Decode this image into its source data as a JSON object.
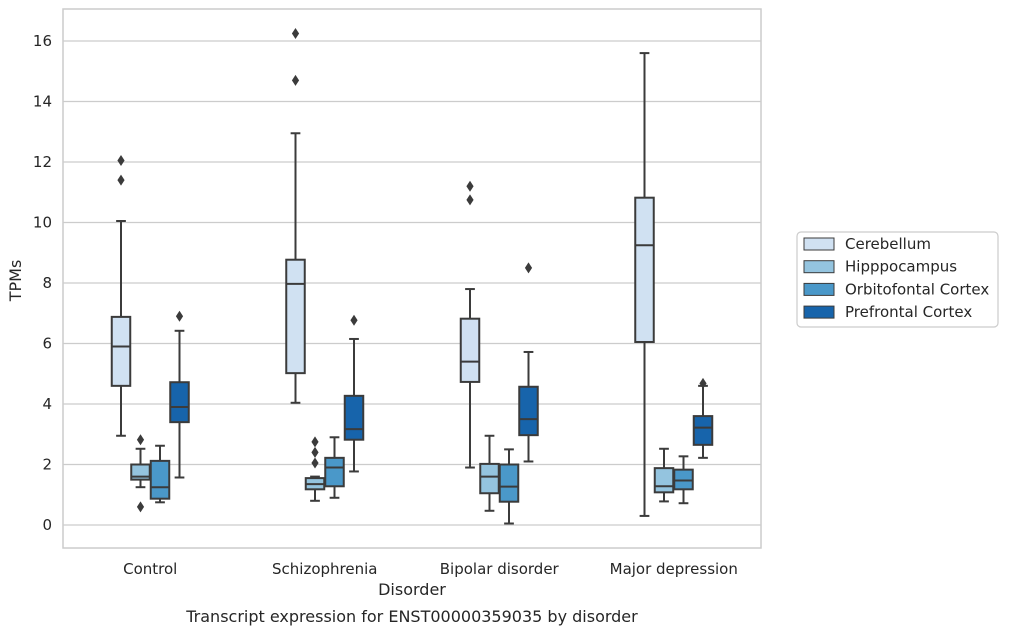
{
  "chart_data": {
    "type": "box",
    "xlabel": "Disorder",
    "ylabel": "TPMs",
    "caption": "Transcript expression for ENST00000359035 by disorder",
    "ylim": [
      -0.75,
      17
    ],
    "yticks": [
      0,
      2,
      4,
      6,
      8,
      10,
      12,
      14,
      16
    ],
    "grid": "horizontal",
    "legend_position": "right",
    "categories": [
      "Control",
      "Schizophrenia",
      "Bipolar disorder",
      "Major depression"
    ],
    "series": [
      {
        "name": "Cerebellum",
        "color": "#d0e1f2",
        "boxes": [
          {
            "q1": 4.6,
            "median": 5.9,
            "q3": 6.88,
            "whislo": 2.95,
            "whishi": 10.05,
            "fliers": [
              11.4,
              12.05
            ]
          },
          {
            "q1": 5.02,
            "median": 7.97,
            "q3": 8.77,
            "whislo": 4.04,
            "whishi": 12.95,
            "fliers": [
              14.7,
              16.25
            ]
          },
          {
            "q1": 4.73,
            "median": 5.4,
            "q3": 6.82,
            "whislo": 1.9,
            "whishi": 7.8,
            "fliers": [
              10.75,
              11.2
            ]
          },
          {
            "q1": 6.05,
            "median": 9.25,
            "q3": 10.82,
            "whislo": 0.3,
            "whishi": 15.6,
            "fliers": []
          }
        ]
      },
      {
        "name": "Hipppocampus",
        "color": "#94c4df",
        "boxes": [
          {
            "q1": 1.5,
            "median": 1.6,
            "q3": 2.0,
            "whislo": 1.25,
            "whishi": 2.52,
            "fliers": [
              0.6,
              2.82
            ]
          },
          {
            "q1": 1.18,
            "median": 1.35,
            "q3": 1.55,
            "whislo": 0.8,
            "whishi": 1.6,
            "fliers": [
              2.05,
              2.4,
              2.75
            ]
          },
          {
            "q1": 1.05,
            "median": 1.6,
            "q3": 2.02,
            "whislo": 0.47,
            "whishi": 2.95,
            "fliers": []
          },
          {
            "q1": 1.08,
            "median": 1.28,
            "q3": 1.88,
            "whislo": 0.78,
            "whishi": 2.52,
            "fliers": []
          }
        ]
      },
      {
        "name": "Orbitofontal Cortex",
        "color": "#4a98c9",
        "boxes": [
          {
            "q1": 0.87,
            "median": 1.25,
            "q3": 2.12,
            "whislo": 0.75,
            "whishi": 2.62,
            "fliers": []
          },
          {
            "q1": 1.28,
            "median": 1.9,
            "q3": 2.22,
            "whislo": 0.9,
            "whishi": 2.9,
            "fliers": []
          },
          {
            "q1": 0.77,
            "median": 1.27,
            "q3": 2.0,
            "whislo": 0.05,
            "whishi": 2.5,
            "fliers": []
          },
          {
            "q1": 1.18,
            "median": 1.47,
            "q3": 1.83,
            "whislo": 0.72,
            "whishi": 2.27,
            "fliers": []
          }
        ]
      },
      {
        "name": "Prefrontal Cortex",
        "color": "#1764ab",
        "boxes": [
          {
            "q1": 3.4,
            "median": 3.9,
            "q3": 4.72,
            "whislo": 1.57,
            "whishi": 6.42,
            "fliers": [
              6.9
            ]
          },
          {
            "q1": 2.82,
            "median": 3.17,
            "q3": 4.27,
            "whislo": 1.77,
            "whishi": 6.15,
            "fliers": [
              6.77
            ]
          },
          {
            "q1": 2.97,
            "median": 3.5,
            "q3": 4.57,
            "whislo": 2.1,
            "whishi": 5.72,
            "fliers": [
              8.5
            ]
          },
          {
            "q1": 2.65,
            "median": 3.22,
            "q3": 3.6,
            "whislo": 2.22,
            "whishi": 4.6,
            "fliers": [
              4.68
            ]
          }
        ]
      }
    ]
  }
}
